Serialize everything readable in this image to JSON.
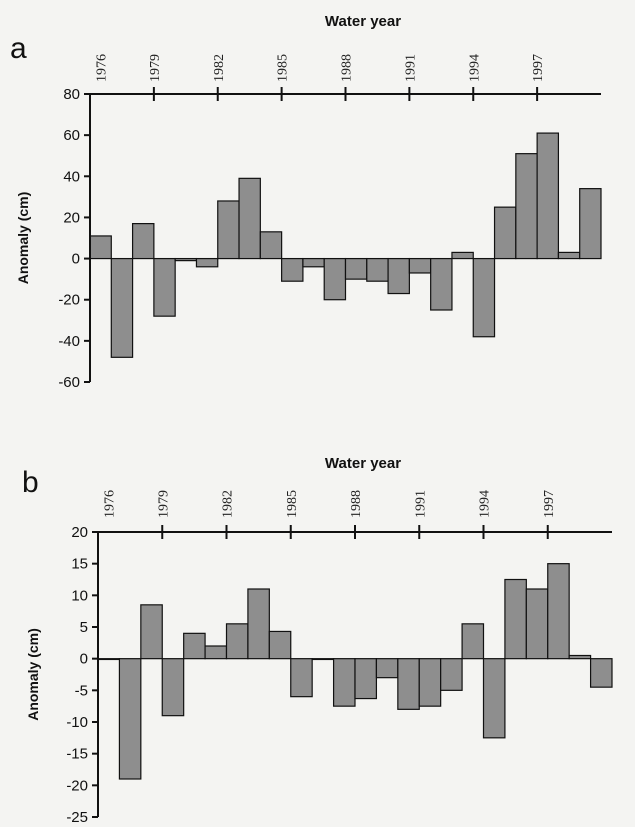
{
  "chart_data": [
    {
      "type": "bar",
      "panel_label": "a",
      "title": "",
      "xlabel": "Water year",
      "ylabel": "Anomaly (cm)",
      "ylim": [
        -60,
        80
      ],
      "yticks": [
        80,
        60,
        40,
        20,
        0,
        -20,
        -40,
        -60
      ],
      "x_tick_labels": [
        "1976",
        "1979",
        "1982",
        "1985",
        "1988",
        "1991",
        "1994",
        "1997"
      ],
      "categories": [
        "1976",
        "1977",
        "1978",
        "1979",
        "1980",
        "1981",
        "1982",
        "1983",
        "1984",
        "1985",
        "1986",
        "1987",
        "1988",
        "1989",
        "1990",
        "1991",
        "1992",
        "1993",
        "1994",
        "1995",
        "1996",
        "1997",
        "1998",
        "1999"
      ],
      "values": [
        11,
        -48,
        17,
        -28,
        -1,
        -4,
        28,
        39,
        13,
        -11,
        -4,
        -20,
        -10,
        -11,
        -17,
        -7,
        -25,
        3,
        -38,
        25,
        51,
        61,
        3,
        34
      ],
      "grid": false,
      "legend": "none"
    },
    {
      "type": "bar",
      "panel_label": "b",
      "title": "",
      "xlabel": "Water year",
      "ylabel": "Anomaly (cm)",
      "ylim": [
        -25,
        20
      ],
      "yticks": [
        20,
        15,
        10,
        5,
        0,
        -5,
        -10,
        -15,
        -20,
        -25
      ],
      "x_tick_labels": [
        "1976",
        "1979",
        "1982",
        "1985",
        "1988",
        "1991",
        "1994",
        "1997"
      ],
      "categories": [
        "1976",
        "1977",
        "1978",
        "1979",
        "1980",
        "1981",
        "1982",
        "1983",
        "1984",
        "1985",
        "1986",
        "1987",
        "1988",
        "1989",
        "1990",
        "1991",
        "1992",
        "1993",
        "1994",
        "1995",
        "1996",
        "1997",
        "1998",
        "1999"
      ],
      "values": [
        0,
        -19,
        8.5,
        -9,
        4,
        2,
        5.5,
        11,
        4.3,
        -6,
        0,
        -7.5,
        -6.3,
        -3,
        -8,
        -7.5,
        -5,
        5.5,
        -12.5,
        12.5,
        11,
        15,
        0.5,
        -4.5
      ],
      "grid": false,
      "legend": "none"
    }
  ]
}
